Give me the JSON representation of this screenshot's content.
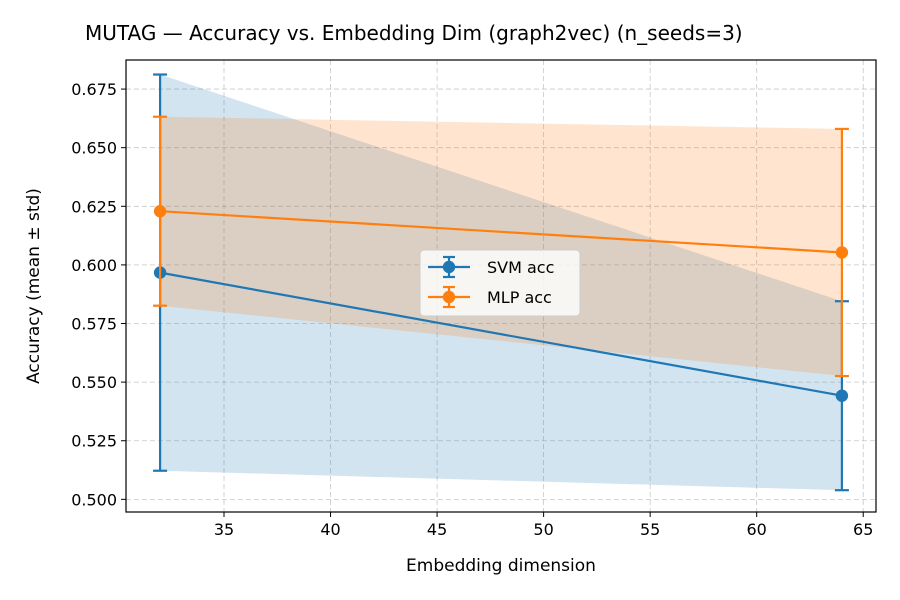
{
  "chart_data": {
    "type": "line",
    "title": "MUTAG — Accuracy vs. Embedding Dim (graph2vec)  (n_seeds=3)",
    "xlabel": "Embedding dimension",
    "ylabel": "Accuracy (mean ± std)",
    "x": [
      32,
      64
    ],
    "xlim": [
      30.4,
      65.6
    ],
    "ylim": [
      0.4946,
      0.6874
    ],
    "xticks": [
      35,
      40,
      45,
      50,
      55,
      60,
      65
    ],
    "yticks": [
      0.5,
      0.525,
      0.55,
      0.575,
      0.6,
      0.625,
      0.65,
      0.675
    ],
    "ytick_labels": [
      "0.500",
      "0.525",
      "0.550",
      "0.575",
      "0.600",
      "0.625",
      "0.650",
      "0.675"
    ],
    "grid": true,
    "legend_position": "center",
    "series": [
      {
        "name": "SVM acc",
        "color": "#1f77b4",
        "mean": [
          0.5967,
          0.5442
        ],
        "std": [
          0.0845,
          0.0403
        ]
      },
      {
        "name": "MLP acc",
        "color": "#ff7f0e",
        "mean": [
          0.6229,
          0.6053
        ],
        "std": [
          0.0403,
          0.0527
        ]
      }
    ]
  }
}
